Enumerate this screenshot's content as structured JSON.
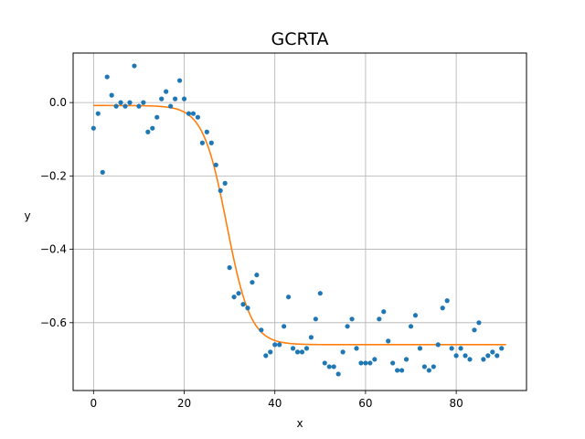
{
  "chart_data": {
    "type": "scatter",
    "title": "GCRTA",
    "xlabel": "x",
    "ylabel": "y",
    "xlim": [
      -4.5,
      95.5
    ],
    "ylim": [
      -0.785,
      0.135
    ],
    "xticks": [
      0,
      20,
      40,
      60,
      80
    ],
    "yticks": [
      0.0,
      -0.2,
      -0.4,
      -0.6
    ],
    "xtick_labels": [
      "0",
      "20",
      "40",
      "60",
      "80"
    ],
    "ytick_labels": [
      "0.0",
      "−0.2",
      "−0.4",
      "−0.6"
    ],
    "grid": true,
    "colors": {
      "points": "#1f77b4",
      "fit": "#ff7f0e",
      "grid": "#b0b0b0"
    },
    "series": [
      {
        "kind": "points",
        "x": [
          0,
          1,
          2,
          3,
          4,
          5,
          6,
          7,
          8,
          9,
          10,
          11,
          12,
          13,
          14,
          15,
          16,
          17,
          18,
          19,
          20,
          21,
          22,
          23,
          24,
          25,
          26,
          27,
          28,
          29,
          30,
          31,
          32,
          33,
          34,
          35,
          36,
          37,
          38,
          39,
          40,
          41,
          42,
          43,
          44,
          45,
          46,
          47,
          48,
          49,
          50,
          51,
          52,
          53,
          54,
          55,
          56,
          57,
          58,
          59,
          60,
          61,
          62,
          63,
          64,
          65,
          66,
          67,
          68,
          69,
          70,
          71,
          72,
          73,
          74,
          75,
          76,
          77,
          78,
          79,
          80,
          81,
          82,
          83,
          84,
          85,
          86,
          87,
          88,
          89,
          90
        ],
        "y": [
          -0.07,
          -0.03,
          -0.19,
          0.07,
          0.02,
          -0.01,
          0.0,
          -0.01,
          0.0,
          0.1,
          -0.01,
          0.0,
          -0.08,
          -0.07,
          -0.04,
          0.01,
          0.03,
          -0.01,
          0.01,
          0.06,
          0.01,
          -0.03,
          -0.03,
          -0.04,
          -0.11,
          -0.08,
          -0.11,
          -0.17,
          -0.24,
          -0.22,
          -0.45,
          -0.53,
          -0.52,
          -0.55,
          -0.56,
          -0.49,
          -0.47,
          -0.62,
          -0.69,
          -0.68,
          -0.66,
          -0.66,
          -0.61,
          -0.53,
          -0.67,
          -0.68,
          -0.68,
          -0.67,
          -0.64,
          -0.59,
          -0.52,
          -0.71,
          -0.72,
          -0.72,
          -0.74,
          -0.68,
          -0.61,
          -0.59,
          -0.67,
          -0.71,
          -0.71,
          -0.71,
          -0.7,
          -0.59,
          -0.57,
          -0.65,
          -0.71,
          -0.73,
          -0.73,
          -0.7,
          -0.61,
          -0.58,
          -0.67,
          -0.72,
          -0.73,
          -0.72,
          -0.66,
          -0.56,
          -0.54,
          -0.67,
          -0.69,
          -0.67,
          -0.69,
          -0.7,
          -0.62,
          -0.6,
          -0.7,
          -0.69,
          -0.68,
          -0.69,
          -0.67
        ]
      },
      {
        "kind": "fit",
        "model": "sigmoid",
        "params": {
          "top": -0.008,
          "bottom": -0.66,
          "x0": 29.4,
          "k": 0.38
        },
        "x_range": [
          0,
          91
        ]
      }
    ]
  }
}
